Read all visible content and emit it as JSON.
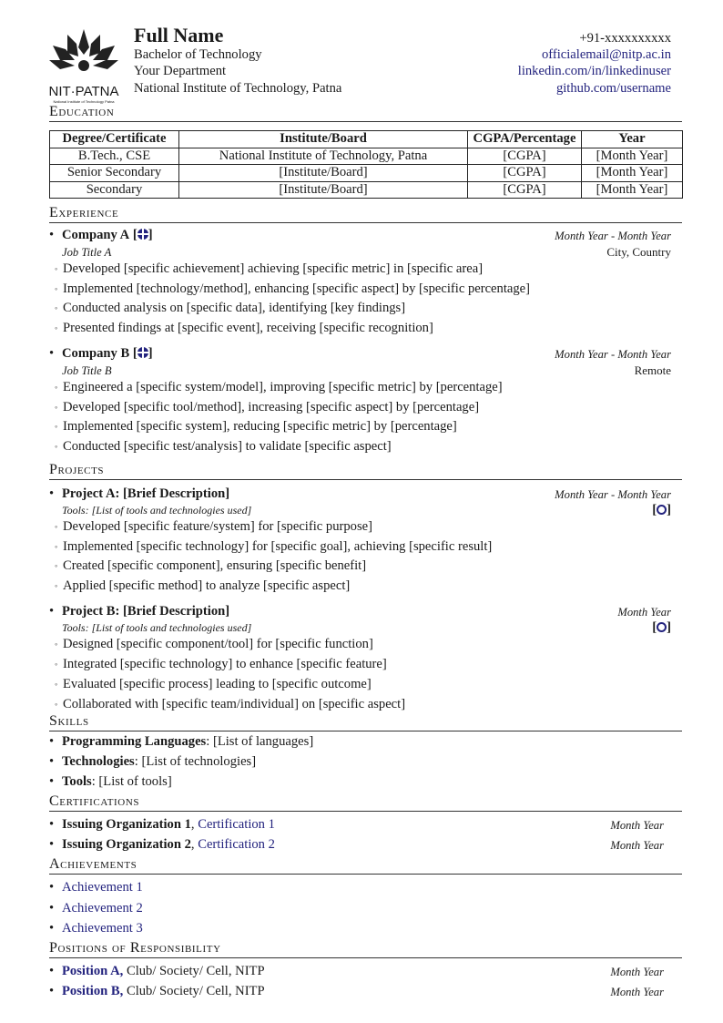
{
  "header": {
    "logo_text": "NIT·PATNA",
    "logo_subtext": "National Institute of Technology Patna",
    "name": "Full Name",
    "degree": "Bachelor of Technology",
    "department": "Your Department",
    "institute": "National Institute of Technology, Patna",
    "phone": "+91-xxxxxxxxxx",
    "email": "officialemail@nitp.ac.in",
    "linkedin": "linkedin.com/in/linkedinuser",
    "github": "github.com/username"
  },
  "education": {
    "title": "Education",
    "columns": [
      "Degree/Certificate",
      "Institute/Board",
      "CGPA/Percentage",
      "Year"
    ],
    "rows": [
      [
        "B.Tech., CSE",
        "National Institute of Technology, Patna",
        "[CGPA]",
        "[Month Year]"
      ],
      [
        "Senior Secondary",
        "[Institute/Board]",
        "[CGPA]",
        "[Month Year]"
      ],
      [
        "Secondary",
        "[Institute/Board]",
        "[CGPA]",
        "[Month Year]"
      ]
    ]
  },
  "experience": {
    "title": "Experience",
    "items": [
      {
        "company": "Company A",
        "dates": "Month Year - Month Year",
        "role": "Job Title A",
        "location": "City, Country",
        "bullets": [
          "Developed [specific achievement] achieving [specific metric] in [specific area]",
          "Implemented [technology/method], enhancing [specific aspect] by [specific percentage]",
          "Conducted analysis on [specific data], identifying [key findings]",
          "Presented findings at [specific event], receiving [specific recognition]"
        ]
      },
      {
        "company": "Company B",
        "dates": "Month Year - Month Year",
        "role": "Job Title B",
        "location": "Remote",
        "bullets": [
          "Engineered a [specific system/model], improving [specific metric] by [percentage]",
          "Developed [specific tool/method], increasing [specific aspect] by [percentage]",
          "Implemented [specific system], reducing [specific metric] by [percentage]",
          "Conducted [specific test/analysis] to validate [specific aspect]"
        ]
      }
    ]
  },
  "projects": {
    "title": "Projects",
    "items": [
      {
        "name": "Project A: [Brief Description]",
        "dates": "Month Year - Month Year",
        "tools": "Tools: [List of tools and technologies used]",
        "bullets": [
          "Developed [specific feature/system] for [specific purpose]",
          "Implemented [specific technology] for [specific goal], achieving [specific result]",
          "Created [specific component], ensuring [specific benefit]",
          "Applied [specific method] to analyze [specific aspect]"
        ]
      },
      {
        "name": "Project B: [Brief Description]",
        "dates": "Month Year",
        "tools": "Tools: [List of tools and technologies used]",
        "bullets": [
          "Designed [specific component/tool] for [specific function]",
          "Integrated [specific technology] to enhance [specific feature]",
          "Evaluated [specific process] leading to [specific outcome]",
          "Collaborated with [specific team/individual] on [specific aspect]"
        ]
      }
    ]
  },
  "skills": {
    "title": "Skills",
    "items": [
      {
        "label": "Programming Languages",
        "value": ": [List of languages]"
      },
      {
        "label": "Technologies",
        "value": ": [List of technologies]"
      },
      {
        "label": "Tools",
        "value": ": [List of tools]"
      }
    ]
  },
  "certifications": {
    "title": "Certifications",
    "items": [
      {
        "org": "Issuing Organization 1",
        "name": "Certification 1",
        "date": "Month Year"
      },
      {
        "org": "Issuing Organization 2",
        "name": "Certification 2",
        "date": "Month Year"
      }
    ]
  },
  "achievements": {
    "title": "Achievements",
    "items": [
      "Achievement 1",
      "Achievement 2",
      "Achievement 3"
    ]
  },
  "positions": {
    "title": "Positions of Responsibility",
    "items": [
      {
        "position": "Position A,",
        "org": "Club/ Society/ Cell, NITP",
        "date": "Month Year"
      },
      {
        "position": "Position B,",
        "org": "Club/ Society/ Cell, NITP",
        "date": "Month Year"
      }
    ]
  },
  "colors": {
    "link": "#23237e",
    "text": "#1a1a1a"
  }
}
